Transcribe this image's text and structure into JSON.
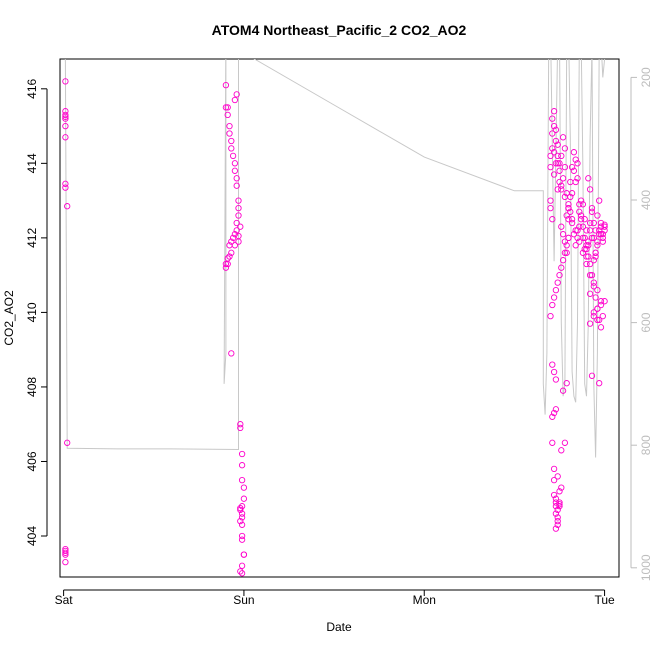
{
  "chart_data": {
    "type": "scatter",
    "title": "ATOM4 Northeast_Pacific_2 CO2_AO2",
    "xlabel": "Date",
    "ylabel": "CO2_AO2",
    "x_ticks": [
      "Sat",
      "Sun",
      "Mon",
      "Tue"
    ],
    "y_ticks": [
      404,
      406,
      408,
      410,
      412,
      414,
      416
    ],
    "y2_ticks": [
      200,
      400,
      600,
      800,
      1000
    ],
    "xlim": [
      -0.02,
      3.08
    ],
    "ylim": [
      402.9,
      416.8
    ],
    "y2lim": [
      1015,
      170
    ],
    "y2_reversed": true,
    "grid": false,
    "marker": "open-circle",
    "colors": {
      "points": "#ff00cc",
      "line": "#c8c8c8",
      "axis": "#000000",
      "right_axis": "#bdbdbd"
    },
    "series": [
      {
        "kind": "points",
        "x_days": [
          0.01,
          0.01,
          0.01,
          0.01,
          0.01,
          0.01,
          0.01,
          0.01,
          0.01,
          0.02,
          0.02,
          0.01,
          0.01,
          0.01,
          0.01,
          0.01,
          0.9,
          0.9,
          0.91,
          0.91,
          0.92,
          0.92,
          0.93,
          0.93,
          0.94,
          0.95,
          0.95,
          0.96,
          0.96,
          0.97,
          0.97,
          0.97,
          0.96,
          0.96,
          0.95,
          0.94,
          0.93,
          0.92,
          0.92,
          0.91,
          0.9,
          0.9,
          0.91,
          0.93,
          0.95,
          0.97,
          0.97,
          0.93,
          0.96,
          0.95,
          0.98,
          0.98,
          0.99,
          0.99,
          0.99,
          1.0,
          1.0,
          0.99,
          0.98,
          0.98,
          0.99,
          0.99,
          0.98,
          0.99,
          0.99,
          0.99,
          1.0,
          1.0,
          0.99,
          0.99,
          0.98,
          0.98,
          2.7,
          2.71,
          2.72,
          2.73,
          2.74,
          2.75,
          2.76,
          2.77,
          2.78,
          2.79,
          2.8,
          2.81,
          2.82,
          2.83,
          2.84,
          2.85,
          2.86,
          2.87,
          2.88,
          2.89,
          2.9,
          2.91,
          2.92,
          2.93,
          2.94,
          2.95,
          2.96,
          2.97,
          2.98,
          2.99,
          3.0,
          3.0,
          2.71,
          2.72,
          2.73,
          2.74,
          2.75,
          2.76,
          2.77,
          2.78,
          2.79,
          2.8,
          2.81,
          2.82,
          2.83,
          2.84,
          2.85,
          2.86,
          2.87,
          2.88,
          2.89,
          2.9,
          2.91,
          2.92,
          2.93,
          2.94,
          2.95,
          2.96,
          2.97,
          2.98,
          2.99,
          2.7,
          2.72,
          2.74,
          2.76,
          2.78,
          2.8,
          2.82,
          2.84,
          2.86,
          2.88,
          2.9,
          2.92,
          2.94,
          2.96,
          2.98,
          2.7,
          2.71,
          2.72,
          2.73,
          2.74,
          2.75,
          2.76,
          2.77,
          2.78,
          2.79,
          2.8,
          2.81,
          2.82,
          2.83,
          2.84,
          2.85,
          2.86,
          2.87,
          2.88,
          2.89,
          2.9,
          2.91,
          2.92,
          2.93,
          2.94,
          2.95,
          2.96,
          2.97,
          2.98,
          2.99,
          3.0,
          2.71,
          2.72,
          2.73,
          2.74,
          2.75,
          2.76,
          2.77,
          2.78,
          2.79,
          2.8,
          2.7,
          2.71,
          2.7,
          2.71,
          2.72,
          2.73,
          2.73,
          2.72,
          2.71,
          2.71,
          2.72,
          2.72,
          2.73,
          2.73,
          2.74,
          2.74,
          2.73,
          2.72,
          2.73,
          2.74,
          2.74,
          2.73,
          2.75,
          2.76,
          2.75,
          2.75,
          2.74,
          2.75,
          2.76,
          2.77,
          2.78,
          2.79,
          2.91,
          2.92,
          2.93,
          2.94,
          2.95,
          2.96,
          2.97,
          2.98,
          2.99,
          3.0,
          2.92,
          2.94,
          2.96,
          2.98,
          2.8,
          2.85,
          2.9,
          2.95,
          2.93,
          2.97,
          2.92,
          2.94,
          2.96
        ],
        "y": [
          416.2,
          415.4,
          415.3,
          415.25,
          415.2,
          415.0,
          414.7,
          413.45,
          413.35,
          412.85,
          406.5,
          403.65,
          403.6,
          403.55,
          403.5,
          403.3,
          416.1,
          415.5,
          415.3,
          415.5,
          415.0,
          414.8,
          414.6,
          414.4,
          414.2,
          414.0,
          413.8,
          413.6,
          413.4,
          413.0,
          412.8,
          412.6,
          412.4,
          412.2,
          412.1,
          412.0,
          411.9,
          411.8,
          411.5,
          411.45,
          411.3,
          411.2,
          411.3,
          411.6,
          411.8,
          411.9,
          412.05,
          408.9,
          415.85,
          415.7,
          407.0,
          406.9,
          406.2,
          405.9,
          405.5,
          405.3,
          405.0,
          404.8,
          404.75,
          404.7,
          404.6,
          404.5,
          404.4,
          404.3,
          404.0,
          403.9,
          403.5,
          403.5,
          403.2,
          403.0,
          403.05,
          412.3,
          413.9,
          415.2,
          415.4,
          414.9,
          414.5,
          413.8,
          414.2,
          414.7,
          414.4,
          413.2,
          412.8,
          413.5,
          413.9,
          414.3,
          414.1,
          413.6,
          412.7,
          413.0,
          412.9,
          412.5,
          412.2,
          411.8,
          412.4,
          412.7,
          412.0,
          411.6,
          411.9,
          412.2,
          412.4,
          412.1,
          412.35,
          412.2,
          414.8,
          415.0,
          414.6,
          414.2,
          414.0,
          413.3,
          413.6,
          413.9,
          412.6,
          412.9,
          413.1,
          412.4,
          412.1,
          411.8,
          412.0,
          412.3,
          412.5,
          412.0,
          411.7,
          411.5,
          411.9,
          412.2,
          412.0,
          411.4,
          411.6,
          411.8,
          412.1,
          412.3,
          412.0,
          413.0,
          414.3,
          414.0,
          413.4,
          413.1,
          412.8,
          412.5,
          412.2,
          411.9,
          411.6,
          411.3,
          411.0,
          410.8,
          410.6,
          410.3,
          414.2,
          414.4,
          413.7,
          414.0,
          413.3,
          413.5,
          412.3,
          412.1,
          411.9,
          411.6,
          412.5,
          412.7,
          413.2,
          413.8,
          413.5,
          414.0,
          412.9,
          412.6,
          412.3,
          412.0,
          411.8,
          411.5,
          411.3,
          411.0,
          410.7,
          410.4,
          410.1,
          409.8,
          409.6,
          409.9,
          410.3,
          410.2,
          410.4,
          410.6,
          410.8,
          411.0,
          411.2,
          411.4,
          411.6,
          411.8,
          412.0,
          412.8,
          412.5,
          409.9,
          408.6,
          408.4,
          408.2,
          407.4,
          407.3,
          407.2,
          406.5,
          405.8,
          405.5,
          405.0,
          404.8,
          404.5,
          404.7,
          404.9,
          405.1,
          404.6,
          404.4,
          404.3,
          404.2,
          404.9,
          405.3,
          404.8,
          405.2,
          405.6,
          404.85,
          406.3,
          407.9,
          406.5,
          408.1,
          413.6,
          413.3,
          412.8,
          412.4,
          412.2,
          412.6,
          413.0,
          412.1,
          411.9,
          412.3,
          409.7,
          409.9,
          410.1,
          410.2,
          412.0,
          412.2,
          411.7,
          411.5,
          408.3,
          408.1,
          410.5,
          410.0,
          409.8
        ],
        "y_range_summary": {
          "min": 403.0,
          "max": 416.2
        }
      },
      {
        "kind": "line",
        "axis": "right",
        "points": [
          [
            0.0,
            80
          ],
          [
            0.01,
            175
          ],
          [
            0.02,
            805
          ],
          [
            0.3,
            806
          ],
          [
            0.6,
            806
          ],
          [
            0.97,
            807
          ],
          [
            0.97,
            150
          ],
          [
            0.9,
            120
          ],
          [
            0.89,
            700
          ],
          [
            0.9,
            650
          ],
          [
            0.9,
            150
          ],
          [
            0.91,
            120
          ],
          [
            0.93,
            160
          ],
          [
            0.95,
            140
          ],
          [
            0.96,
            100
          ],
          [
            0.96,
            150
          ],
          [
            1.0,
            160
          ],
          [
            1.5,
            245
          ],
          [
            2.0,
            330
          ],
          [
            2.5,
            385
          ],
          [
            2.66,
            385
          ],
          [
            2.66,
            700
          ],
          [
            2.67,
            750
          ],
          [
            2.68,
            650
          ],
          [
            2.69,
            150
          ],
          [
            2.7,
            120
          ],
          [
            2.72,
            500
          ],
          [
            2.74,
            140
          ],
          [
            2.75,
            130
          ],
          [
            2.76,
            600
          ],
          [
            2.77,
            720
          ],
          [
            2.78,
            700
          ],
          [
            2.79,
            150
          ],
          [
            2.8,
            120
          ],
          [
            2.81,
            300
          ],
          [
            2.82,
            680
          ],
          [
            2.83,
            720
          ],
          [
            2.84,
            730
          ],
          [
            2.85,
            600
          ],
          [
            2.86,
            150
          ],
          [
            2.87,
            130
          ],
          [
            2.88,
            350
          ],
          [
            2.89,
            700
          ],
          [
            2.9,
            720
          ],
          [
            2.91,
            600
          ],
          [
            2.92,
            300
          ],
          [
            2.93,
            150
          ],
          [
            2.94,
            700
          ],
          [
            2.95,
            820
          ],
          [
            2.96,
            650
          ],
          [
            2.97,
            150
          ],
          [
            2.98,
            140
          ],
          [
            2.99,
            200
          ],
          [
            3.0,
            170
          ]
        ]
      }
    ]
  }
}
